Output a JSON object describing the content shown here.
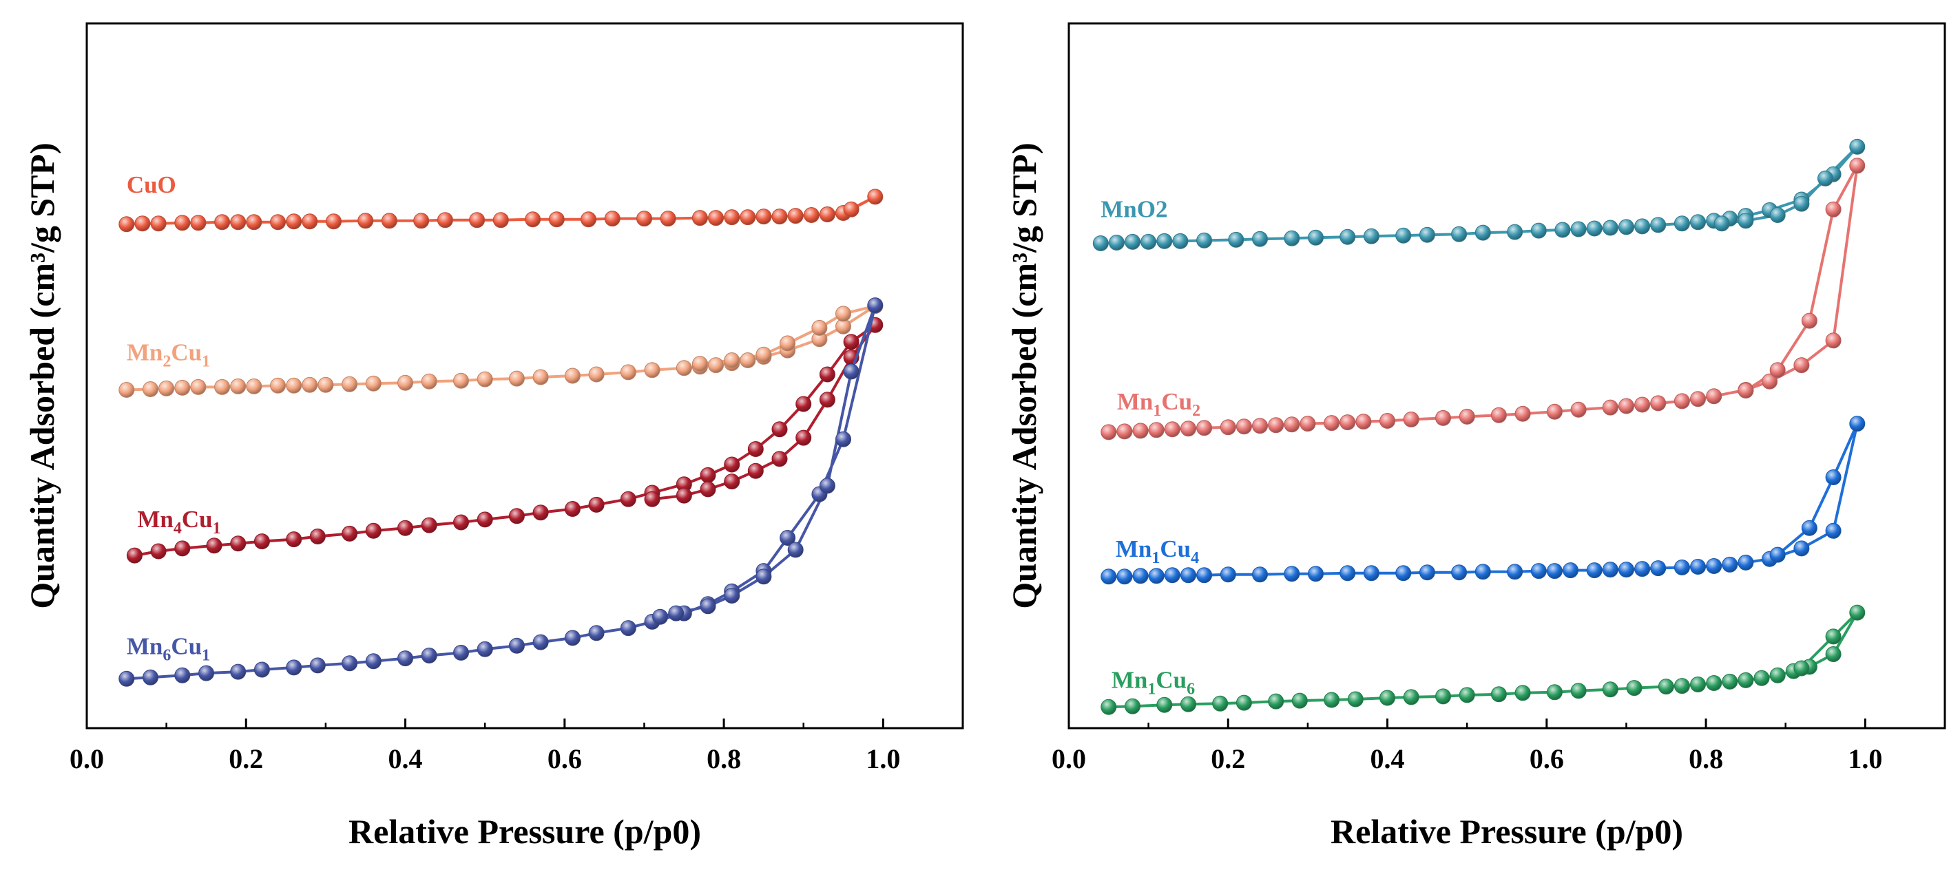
{
  "chart_data": [
    {
      "type": "line",
      "panel": "left",
      "xlabel": "Relative Pressure (p/p0)",
      "ylabel": "Quantity Adsorbed (cm³/g STP)",
      "xlim": [
        0.0,
        1.1
      ],
      "ylim": [
        0,
        100
      ],
      "xticks": [
        "0.0",
        "0.2",
        "0.4",
        "0.6",
        "0.8",
        "1.0"
      ],
      "yticks": [],
      "series": [
        {
          "name": "CuO",
          "label": "CuO",
          "sub1": "",
          "mid": "",
          "sub2": "",
          "color": "#EC5B3F",
          "x": [
            0.05,
            0.07,
            0.09,
            0.12,
            0.14,
            0.17,
            0.19,
            0.21,
            0.24,
            0.26,
            0.28,
            0.31,
            0.35,
            0.38,
            0.42,
            0.45,
            0.49,
            0.52,
            0.56,
            0.59,
            0.63,
            0.66,
            0.7,
            0.73,
            0.77,
            0.79,
            0.81,
            0.83,
            0.85,
            0.87,
            0.89,
            0.91,
            0.93,
            0.95,
            0.99,
            0.96,
            0.93
          ],
          "y": [
            71.5,
            71.6,
            71.6,
            71.7,
            71.7,
            71.8,
            71.8,
            71.8,
            71.8,
            71.9,
            71.9,
            71.9,
            72.0,
            72.0,
            72.0,
            72.1,
            72.1,
            72.1,
            72.2,
            72.2,
            72.2,
            72.3,
            72.3,
            72.3,
            72.4,
            72.4,
            72.5,
            72.5,
            72.6,
            72.6,
            72.7,
            72.8,
            72.9,
            73.1,
            75.4,
            73.6,
            72.9
          ]
        },
        {
          "name": "Mn2Cu1",
          "label": "",
          "sub1": "",
          "mid": "",
          "sub2": "",
          "color": "#F1A37E",
          "x": [
            0.05,
            0.08,
            0.1,
            0.12,
            0.14,
            0.17,
            0.19,
            0.21,
            0.24,
            0.26,
            0.28,
            0.3,
            0.33,
            0.36,
            0.4,
            0.43,
            0.47,
            0.5,
            0.54,
            0.57,
            0.61,
            0.64,
            0.68,
            0.71,
            0.75,
            0.77,
            0.79,
            0.81,
            0.83,
            0.85,
            0.88,
            0.92,
            0.95,
            0.99,
            0.95,
            0.92,
            0.88,
            0.85,
            0.81,
            0.77
          ],
          "y": [
            48.0,
            48.1,
            48.2,
            48.3,
            48.4,
            48.4,
            48.5,
            48.5,
            48.6,
            48.6,
            48.7,
            48.7,
            48.8,
            48.9,
            49.0,
            49.2,
            49.3,
            49.5,
            49.6,
            49.8,
            50.0,
            50.2,
            50.5,
            50.8,
            51.1,
            51.3,
            51.5,
            51.8,
            52.2,
            52.7,
            53.6,
            55.2,
            57.0,
            59.9,
            58.8,
            56.8,
            54.6,
            53.0,
            52.2,
            51.7
          ]
        },
        {
          "name": "Mn4Cu1",
          "label": "",
          "sub1": "",
          "mid": "",
          "sub2": "",
          "color": "#B01E2E",
          "x": [
            0.06,
            0.09,
            0.12,
            0.16,
            0.19,
            0.22,
            0.26,
            0.29,
            0.33,
            0.36,
            0.4,
            0.43,
            0.47,
            0.5,
            0.54,
            0.57,
            0.61,
            0.64,
            0.68,
            0.71,
            0.75,
            0.78,
            0.81,
            0.84,
            0.87,
            0.9,
            0.93,
            0.96,
            0.99,
            0.96,
            0.93,
            0.9,
            0.87,
            0.84,
            0.81,
            0.78,
            0.75,
            0.71
          ],
          "y": [
            24.5,
            25.1,
            25.5,
            25.9,
            26.2,
            26.5,
            26.8,
            27.2,
            27.6,
            28.0,
            28.4,
            28.8,
            29.2,
            29.6,
            30.1,
            30.6,
            31.1,
            31.7,
            32.5,
            33.4,
            34.6,
            35.9,
            37.4,
            39.6,
            42.4,
            46.0,
            50.2,
            54.8,
            57.2,
            52.6,
            46.6,
            41.2,
            38.2,
            36.5,
            35.0,
            33.9,
            33.0,
            32.5
          ]
        },
        {
          "name": "Mn6Cu1",
          "label": "",
          "sub1": "",
          "mid": "",
          "sub2": "",
          "color": "#4656A6",
          "x": [
            0.05,
            0.08,
            0.12,
            0.15,
            0.19,
            0.22,
            0.26,
            0.29,
            0.33,
            0.36,
            0.4,
            0.43,
            0.47,
            0.5,
            0.54,
            0.57,
            0.61,
            0.64,
            0.68,
            0.71,
            0.75,
            0.78,
            0.81,
            0.85,
            0.88,
            0.92,
            0.95,
            0.99,
            0.96,
            0.93,
            0.89,
            0.85,
            0.81,
            0.78,
            0.74,
            0.72
          ],
          "y": [
            7.0,
            7.2,
            7.5,
            7.8,
            8.0,
            8.3,
            8.6,
            8.9,
            9.2,
            9.5,
            9.9,
            10.3,
            10.7,
            11.2,
            11.7,
            12.2,
            12.8,
            13.5,
            14.2,
            15.1,
            16.3,
            17.6,
            19.4,
            22.3,
            27.0,
            33.2,
            41.0,
            60.0,
            50.6,
            34.4,
            25.3,
            21.5,
            18.8,
            17.3,
            16.3,
            15.8
          ]
        }
      ]
    },
    {
      "type": "line",
      "panel": "right",
      "xlabel": "Relative Pressure (p/p0)",
      "ylabel": "Quantity Adsorbed (cm³/g STP)",
      "xlim": [
        0.0,
        1.1
      ],
      "ylim": [
        0,
        100
      ],
      "xticks": [
        "0.0",
        "0.2",
        "0.4",
        "0.6",
        "0.8",
        "1.0"
      ],
      "yticks": [],
      "series": [
        {
          "name": "MnO2",
          "label": "",
          "sub1": "",
          "mid": "",
          "sub2": "",
          "color": "#3B97AF",
          "x": [
            0.04,
            0.06,
            0.08,
            0.1,
            0.12,
            0.14,
            0.17,
            0.21,
            0.24,
            0.28,
            0.31,
            0.35,
            0.38,
            0.42,
            0.45,
            0.49,
            0.52,
            0.56,
            0.59,
            0.62,
            0.64,
            0.66,
            0.68,
            0.7,
            0.72,
            0.74,
            0.77,
            0.79,
            0.81,
            0.83,
            0.85,
            0.88,
            0.92,
            0.96,
            0.99,
            0.95,
            0.92,
            0.89,
            0.85,
            0.82
          ],
          "y": [
            68.8,
            68.9,
            69.0,
            69.0,
            69.1,
            69.1,
            69.2,
            69.3,
            69.4,
            69.5,
            69.6,
            69.7,
            69.8,
            69.9,
            70.0,
            70.1,
            70.3,
            70.4,
            70.6,
            70.7,
            70.8,
            70.9,
            71.0,
            71.1,
            71.2,
            71.4,
            71.6,
            71.8,
            72.0,
            72.3,
            72.7,
            73.5,
            75.0,
            78.6,
            82.5,
            78.0,
            74.4,
            72.8,
            72.0,
            71.6
          ]
        },
        {
          "name": "Mn1Cu2",
          "label": "",
          "sub1": "",
          "mid": "",
          "sub2": "",
          "color": "#E67370",
          "x": [
            0.05,
            0.07,
            0.09,
            0.11,
            0.13,
            0.15,
            0.17,
            0.2,
            0.22,
            0.24,
            0.26,
            0.28,
            0.3,
            0.33,
            0.35,
            0.37,
            0.4,
            0.43,
            0.47,
            0.5,
            0.54,
            0.57,
            0.61,
            0.64,
            0.68,
            0.7,
            0.72,
            0.74,
            0.77,
            0.79,
            0.81,
            0.85,
            0.88,
            0.92,
            0.96,
            0.99,
            0.96,
            0.93,
            0.89,
            0.85
          ],
          "y": [
            42.0,
            42.1,
            42.2,
            42.3,
            42.4,
            42.5,
            42.6,
            42.7,
            42.8,
            42.9,
            43.0,
            43.1,
            43.2,
            43.3,
            43.4,
            43.5,
            43.6,
            43.8,
            44.0,
            44.2,
            44.4,
            44.6,
            44.9,
            45.2,
            45.5,
            45.7,
            45.9,
            46.1,
            46.4,
            46.7,
            47.1,
            48.0,
            49.2,
            51.5,
            55.0,
            79.8,
            73.6,
            57.8,
            50.8,
            47.9
          ]
        },
        {
          "name": "Mn1Cu4",
          "label": "",
          "sub1": "",
          "mid": "",
          "sub2": "",
          "color": "#1E6FD9",
          "x": [
            0.05,
            0.07,
            0.09,
            0.11,
            0.13,
            0.15,
            0.17,
            0.2,
            0.24,
            0.28,
            0.31,
            0.35,
            0.38,
            0.42,
            0.45,
            0.49,
            0.52,
            0.56,
            0.59,
            0.61,
            0.63,
            0.66,
            0.68,
            0.7,
            0.72,
            0.74,
            0.77,
            0.79,
            0.81,
            0.83,
            0.85,
            0.88,
            0.92,
            0.96,
            0.99,
            0.96,
            0.93,
            0.89
          ],
          "y": [
            21.5,
            21.5,
            21.6,
            21.6,
            21.7,
            21.7,
            21.7,
            21.8,
            21.8,
            21.9,
            21.9,
            22.0,
            22.0,
            22.0,
            22.1,
            22.1,
            22.2,
            22.2,
            22.3,
            22.3,
            22.4,
            22.4,
            22.5,
            22.5,
            22.6,
            22.7,
            22.8,
            22.9,
            23.0,
            23.2,
            23.5,
            24.0,
            25.5,
            28.0,
            43.2,
            35.6,
            28.4,
            24.6
          ]
        },
        {
          "name": "Mn1Cu6",
          "label": "",
          "sub1": "",
          "mid": "",
          "sub2": "",
          "color": "#2A9E5F",
          "x": [
            0.05,
            0.08,
            0.12,
            0.15,
            0.19,
            0.22,
            0.26,
            0.29,
            0.33,
            0.36,
            0.4,
            0.43,
            0.47,
            0.5,
            0.54,
            0.57,
            0.61,
            0.64,
            0.68,
            0.71,
            0.75,
            0.77,
            0.79,
            0.81,
            0.83,
            0.85,
            0.87,
            0.89,
            0.91,
            0.93,
            0.96,
            0.99,
            0.96,
            0.92
          ],
          "y": [
            3.0,
            3.1,
            3.3,
            3.4,
            3.5,
            3.6,
            3.8,
            3.9,
            4.0,
            4.1,
            4.3,
            4.4,
            4.5,
            4.7,
            4.8,
            5.0,
            5.1,
            5.3,
            5.5,
            5.7,
            5.9,
            6.0,
            6.2,
            6.4,
            6.6,
            6.8,
            7.1,
            7.5,
            8.1,
            8.7,
            10.5,
            16.4,
            13.0,
            8.5
          ]
        }
      ]
    }
  ]
}
